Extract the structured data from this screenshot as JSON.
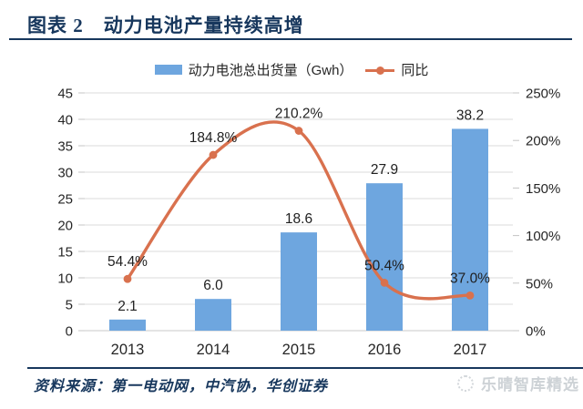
{
  "header": {
    "title": "图表 2　动力电池产量持续高增"
  },
  "legend": [
    {
      "type": "bar",
      "label": "动力电池总出货量（Gwh）"
    },
    {
      "type": "line",
      "label": "同比"
    }
  ],
  "chart_data": {
    "type": "bar",
    "categories": [
      "2013",
      "2014",
      "2015",
      "2016",
      "2017"
    ],
    "series": [
      {
        "name": "动力电池总出货量（Gwh）",
        "type": "bar",
        "axis": "left",
        "values": [
          2.1,
          6.0,
          18.6,
          27.9,
          38.2
        ],
        "labels": [
          "2.1",
          "6.0",
          "18.6",
          "27.9",
          "38.2"
        ]
      },
      {
        "name": "同比",
        "type": "line",
        "axis": "right",
        "values": [
          54.4,
          184.8,
          210.2,
          50.4,
          37.0
        ],
        "labels": [
          "54.4%",
          "184.8%",
          "210.2%",
          "50.4%",
          "37.0%"
        ]
      }
    ],
    "left_axis": {
      "min": 0,
      "max": 45,
      "step": 5,
      "ticks": [
        "0",
        "5",
        "10",
        "15",
        "20",
        "25",
        "30",
        "35",
        "40",
        "45"
      ]
    },
    "right_axis": {
      "min": 0,
      "max": 250,
      "step": 50,
      "ticks": [
        "0%",
        "50%",
        "100%",
        "150%",
        "200%",
        "250%"
      ]
    },
    "grid": true,
    "legend_position": "top",
    "title": "动力电池产量持续高增"
  },
  "colors": {
    "bar": "#6EA6DF",
    "line": "#D9714E",
    "title": "#17375D",
    "grid": "#DBDBDB",
    "baseline": "#C8C8C8",
    "tick": "#C4C4C4",
    "axis_text": "#262626",
    "label_text": "#1F1F1F",
    "watermark": "#CDD2D6"
  },
  "footer": {
    "source": "资料来源：第一电动网，中汽协，华创证券",
    "watermark": "乐晴智库精选"
  }
}
